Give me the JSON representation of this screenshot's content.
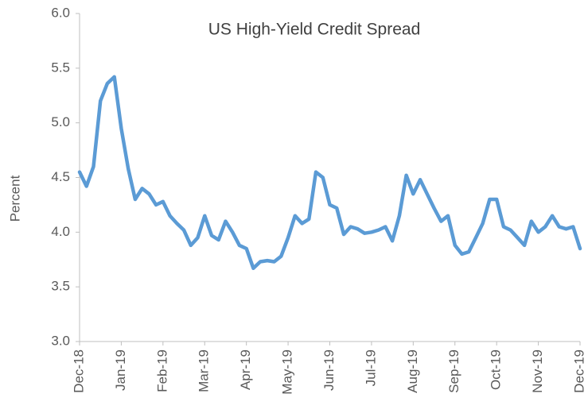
{
  "chart_data": {
    "type": "line",
    "title": "US High-Yield Credit Spread",
    "y_label": "Percent",
    "categories": [
      "Dec-18",
      null,
      null,
      null,
      null,
      null,
      "Jan-19",
      null,
      null,
      null,
      null,
      null,
      "Feb-19",
      null,
      null,
      null,
      null,
      null,
      "Mar-19",
      null,
      null,
      null,
      null,
      null,
      "Apr-19",
      null,
      null,
      null,
      null,
      null,
      "May-19",
      null,
      null,
      null,
      null,
      null,
      "Jun-19",
      null,
      null,
      null,
      null,
      null,
      "Jul-19",
      null,
      null,
      null,
      null,
      null,
      "Aug-19",
      null,
      null,
      null,
      null,
      null,
      "Sep-19",
      null,
      null,
      null,
      null,
      null,
      "Oct-19",
      null,
      null,
      null,
      null,
      null,
      "Nov-19",
      null,
      null,
      null,
      null,
      null,
      "Dec-19"
    ],
    "series": [
      {
        "name": "US High-Yield Credit Spread",
        "color": "#5b9bd5",
        "values": [
          4.55,
          4.42,
          4.6,
          5.2,
          5.36,
          5.42,
          4.95,
          4.58,
          4.3,
          4.4,
          4.35,
          4.25,
          4.28,
          4.15,
          4.08,
          4.02,
          3.88,
          3.95,
          4.15,
          3.97,
          3.93,
          4.1,
          4.0,
          3.88,
          3.85,
          3.67,
          3.73,
          3.74,
          3.73,
          3.78,
          3.95,
          4.15,
          4.08,
          4.12,
          4.55,
          4.5,
          4.25,
          4.22,
          3.98,
          4.05,
          4.03,
          3.99,
          4.0,
          4.02,
          4.05,
          3.92,
          4.15,
          4.52,
          4.35,
          4.48,
          4.35,
          4.22,
          4.1,
          4.15,
          3.88,
          3.8,
          3.82,
          3.95,
          4.08,
          4.3,
          4.3,
          4.05,
          4.02,
          3.95,
          3.88,
          4.1,
          4.0,
          4.05,
          4.15,
          4.05,
          4.03,
          4.05,
          3.85
        ]
      }
    ],
    "ylim": [
      3.0,
      6.0
    ],
    "yticks": [
      {
        "value": 3.0,
        "label": "3.0"
      },
      {
        "value": 3.5,
        "label": "3.5"
      },
      {
        "value": 4.0,
        "label": "4.0"
      },
      {
        "value": 4.5,
        "label": "4.5"
      },
      {
        "value": 5.0,
        "label": "5.0"
      },
      {
        "value": 5.5,
        "label": "5.5"
      },
      {
        "value": 6.0,
        "label": "6.0"
      }
    ],
    "grid": false
  }
}
